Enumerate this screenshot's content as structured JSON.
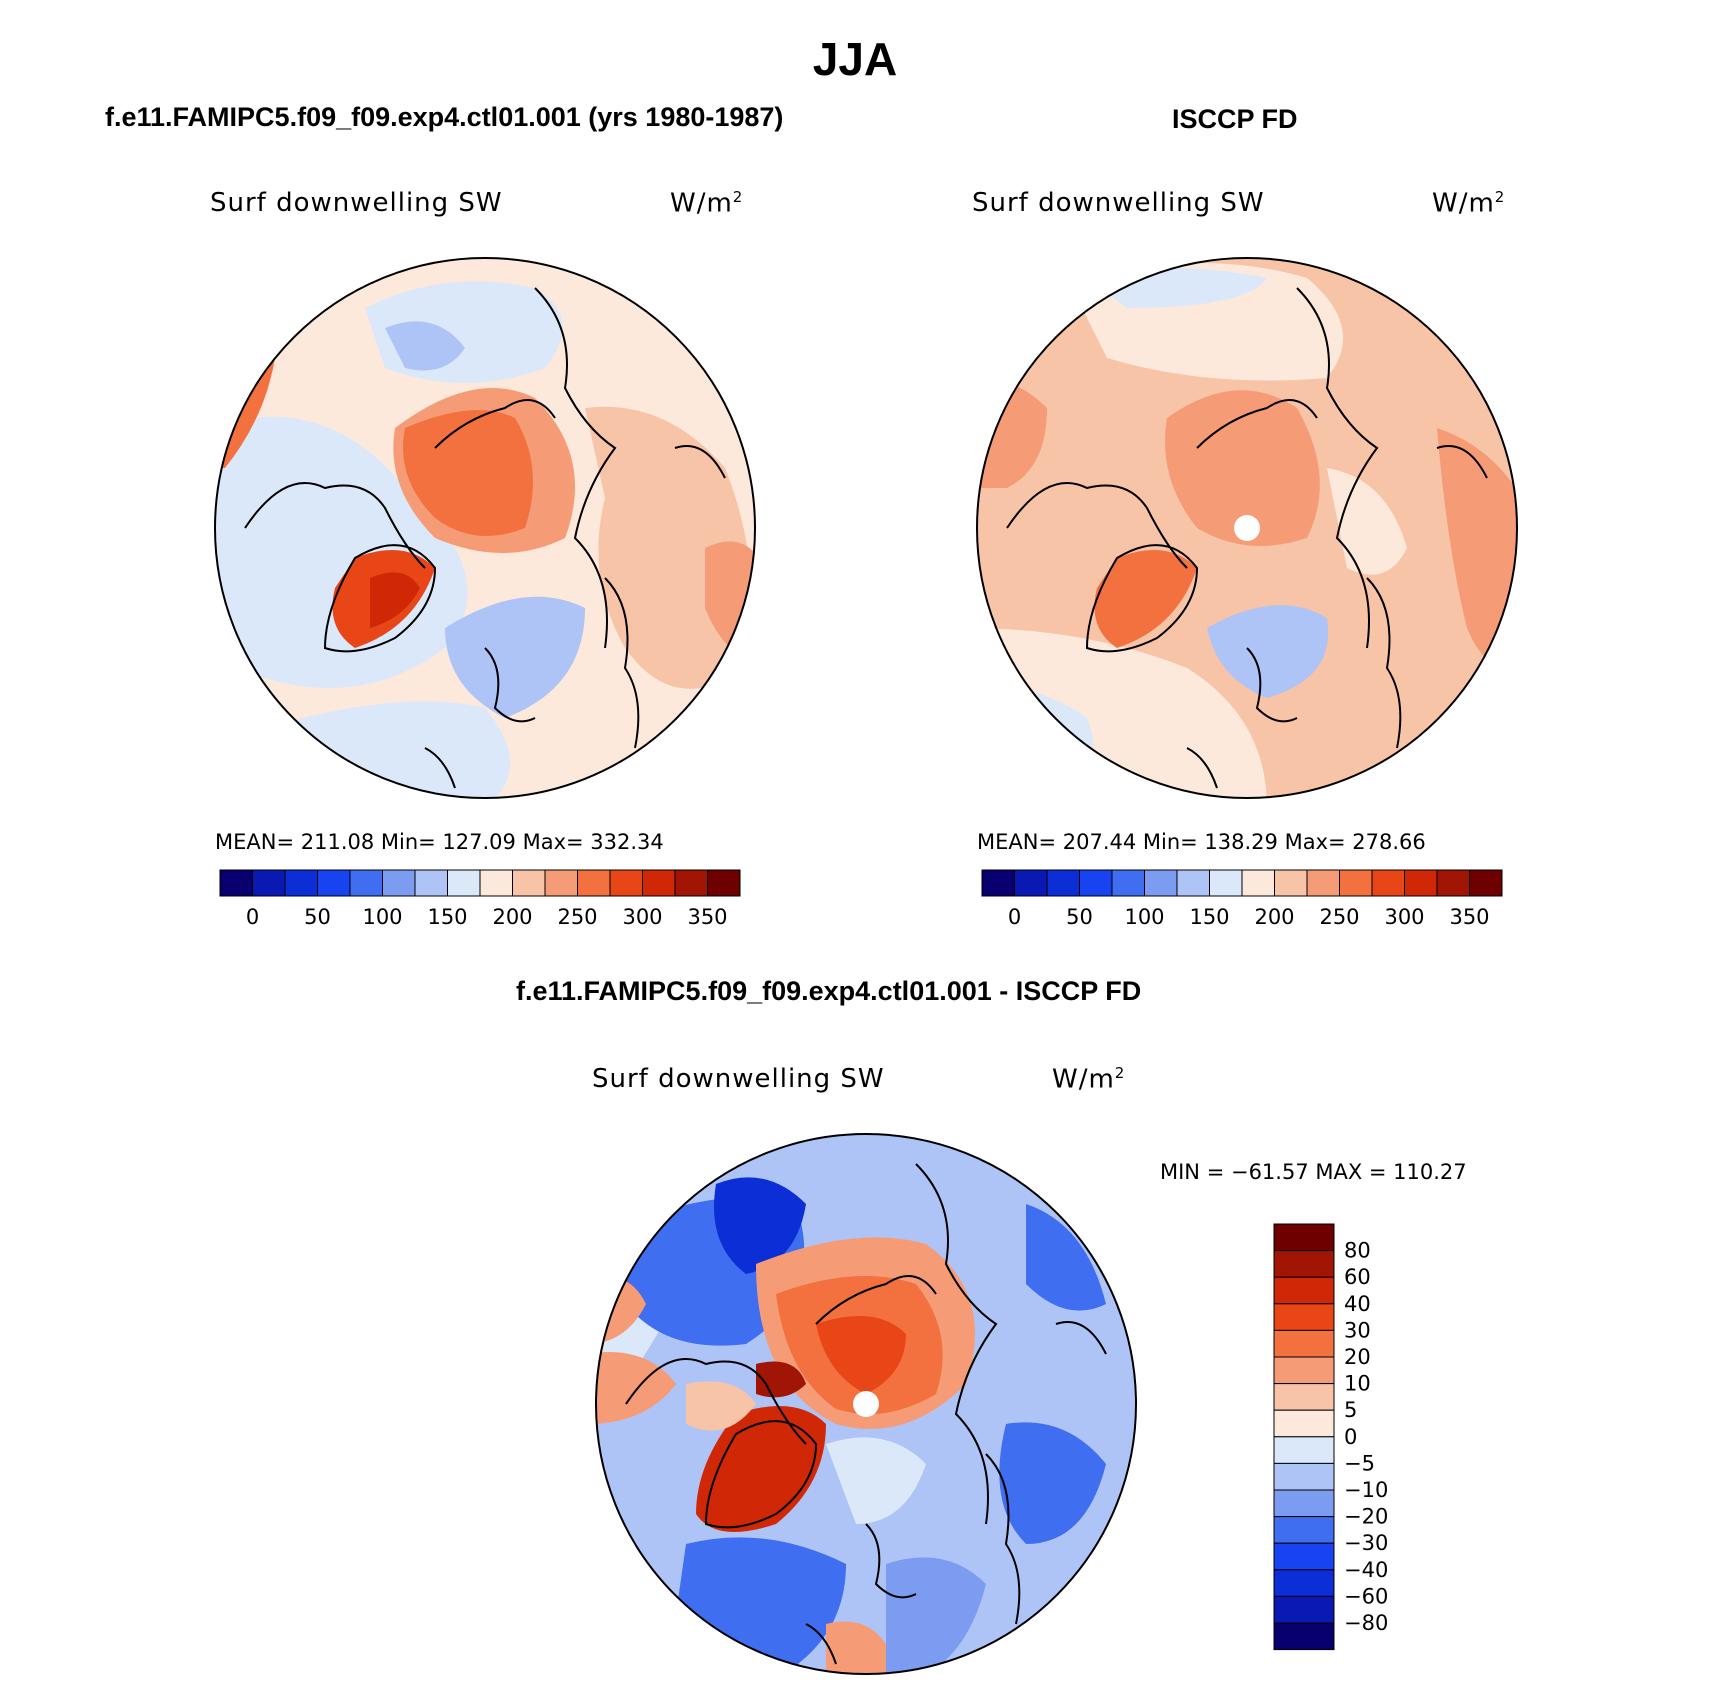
{
  "figure": {
    "season_title": "JJA"
  },
  "panels": [
    {
      "id": "model",
      "title": "f.e11.FAMIPC5.f09_f09.exp4.ctl01.001 (yrs 1980-1987)",
      "variable": "Surf downwelling SW",
      "units_base": "W/m",
      "units_exp": "2",
      "stats_text": "MEAN= 211.08   Min= 127.09   Max= 332.34",
      "stats": {
        "mean": 211.08,
        "min": 127.09,
        "max": 332.34
      }
    },
    {
      "id": "obs",
      "title": "ISCCP FD",
      "variable": "Surf downwelling SW",
      "units_base": "W/m",
      "units_exp": "2",
      "stats_text": "MEAN= 207.44   Min= 138.29   Max= 278.66",
      "stats": {
        "mean": 207.44,
        "min": 138.29,
        "max": 278.66
      }
    },
    {
      "id": "diff",
      "title": "f.e11.FAMIPC5.f09_f09.exp4.ctl01.001 - ISCCP FD",
      "variable": "Surf downwelling SW",
      "units_base": "W/m",
      "units_exp": "2",
      "stats_text": "MIN = −61.57 MAX = 110.27",
      "stats": {
        "min": -61.57,
        "max": 110.27
      }
    }
  ],
  "colorbar_abs": {
    "colors": [
      "#08006e",
      "#0a18b4",
      "#0b2ed6",
      "#1744f0",
      "#3f6ef0",
      "#7c9cf2",
      "#aec4f6",
      "#dbe8fa",
      "#fde9db",
      "#f8c4a8",
      "#f59c76",
      "#f2713f",
      "#e94618",
      "#d02806",
      "#a01503",
      "#6e0000"
    ],
    "tick_labels": [
      "0",
      "50",
      "100",
      "150",
      "200",
      "250",
      "300",
      "350"
    ]
  },
  "colorbar_diff": {
    "colors": [
      "#6e0000",
      "#a01503",
      "#d02806",
      "#e94618",
      "#f2713f",
      "#f59c76",
      "#f8c4a8",
      "#fde9db",
      "#dbe8fa",
      "#aec4f6",
      "#7c9cf2",
      "#3f6ef0",
      "#1744f0",
      "#0b2ed6",
      "#0a18b4",
      "#08006e"
    ],
    "tick_labels": [
      "80",
      "60",
      "40",
      "30",
      "20",
      "10",
      "5",
      "0",
      "−5",
      "−10",
      "−20",
      "−30",
      "−40",
      "−60",
      "−80"
    ]
  },
  "maps": {
    "projection": "north polar stereographic",
    "coastline_color": "#000000"
  }
}
